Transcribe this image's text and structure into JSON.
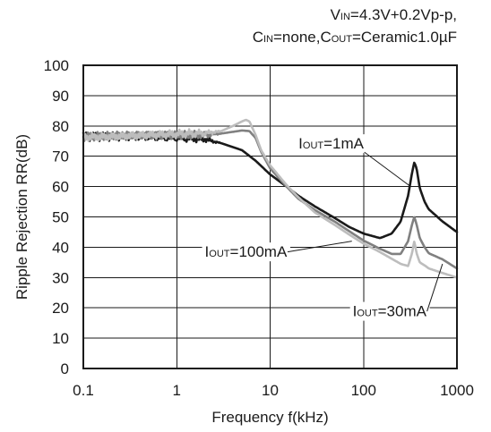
{
  "chart_data": {
    "type": "line",
    "conditions": [
      [
        {
          "t": "V"
        },
        {
          "t": "IN",
          "sub": true
        },
        {
          "t": "=4.3V+0.2Vp-p,"
        }
      ],
      [
        {
          "t": "C"
        },
        {
          "t": "IN",
          "sub": true
        },
        {
          "t": "=none,C"
        },
        {
          "t": "OUT",
          "sub": true
        },
        {
          "t": "=Ceramic1.0µF"
        }
      ]
    ],
    "xlabel": "Frequency f(kHz)",
    "ylabel": "Ripple Rejection RR(dB)",
    "xscale": "log",
    "xlim": [
      0.1,
      1000
    ],
    "ylim": [
      0,
      100
    ],
    "x_ticks": [
      "0.1",
      "1",
      "10",
      "100",
      "1000"
    ],
    "y_ticks": [
      "0",
      "10",
      "20",
      "30",
      "40",
      "50",
      "60",
      "70",
      "80",
      "90",
      "100"
    ],
    "grid": true,
    "series": [
      {
        "name": "IOUT=1mA",
        "label_parts": [
          {
            "t": "I"
          },
          {
            "t": "OUT",
            "sub": true
          },
          {
            "t": "=1mA"
          }
        ],
        "color": "#1a1a1a",
        "x": [
          0.1,
          0.2,
          0.5,
          1,
          2,
          3,
          5,
          7,
          10,
          15,
          20,
          30,
          50,
          70,
          100,
          150,
          200,
          250,
          300,
          330,
          350,
          370,
          400,
          450,
          500,
          700,
          1000
        ],
        "y": [
          76.5,
          76.5,
          76.5,
          76.3,
          75.6,
          74.3,
          72,
          68.5,
          64,
          60,
          57,
          53.5,
          49.5,
          46.7,
          44.5,
          43,
          44.5,
          48.5,
          57,
          64.5,
          68,
          66,
          59.5,
          55,
          52.5,
          48.5,
          45
        ]
      },
      {
        "name": "IOUT=30mA",
        "label_parts": [
          {
            "t": "I"
          },
          {
            "t": "OUT",
            "sub": true
          },
          {
            "t": "=30mA"
          }
        ],
        "color": "#808080",
        "x": [
          0.1,
          0.2,
          0.5,
          1,
          2,
          3,
          5,
          6,
          7,
          8,
          10,
          15,
          20,
          30,
          50,
          70,
          100,
          150,
          200,
          250,
          300,
          330,
          350,
          370,
          400,
          450,
          500,
          700,
          1000
        ],
        "y": [
          76.5,
          76.8,
          77,
          77,
          77,
          77.5,
          78.5,
          78.3,
          76,
          71.5,
          66,
          60,
          56,
          52.3,
          48.3,
          45.3,
          42.2,
          39.5,
          37.8,
          37.8,
          42,
          47.5,
          50,
          47.5,
          43,
          40,
          38,
          36,
          33
        ]
      },
      {
        "name": "IOUT=100mA",
        "label_parts": [
          {
            "t": "I"
          },
          {
            "t": "OUT",
            "sub": true
          },
          {
            "t": "=100mA"
          }
        ],
        "color": "#bdbdbd",
        "x": [
          0.1,
          0.2,
          0.5,
          1,
          2,
          3,
          4,
          5,
          5.5,
          6,
          7,
          8,
          10,
          15,
          20,
          30,
          50,
          70,
          100,
          150,
          200,
          250,
          300,
          330,
          350,
          370,
          400,
          450,
          500,
          700,
          1000
        ],
        "y": [
          76.3,
          76.5,
          77,
          77.3,
          77.6,
          78.3,
          80,
          81.5,
          82,
          81.5,
          77,
          72,
          67,
          60.5,
          56.5,
          51.5,
          47.2,
          44.2,
          41.2,
          38.4,
          36.2,
          34.5,
          33.8,
          38,
          42,
          38,
          35,
          34,
          33,
          31.5,
          30
        ]
      }
    ],
    "annotations": [
      {
        "series": 0,
        "label_at": [
          45,
          74.3
        ],
        "arrow_to": [
          320,
          60
        ]
      },
      {
        "series": 2,
        "label_at": [
          5.5,
          38.6
        ],
        "arrow_to": [
          75,
          42
        ]
      },
      {
        "series": 1,
        "label_at": [
          190,
          19
        ],
        "arrow_to": [
          700,
          34.5
        ]
      }
    ]
  }
}
